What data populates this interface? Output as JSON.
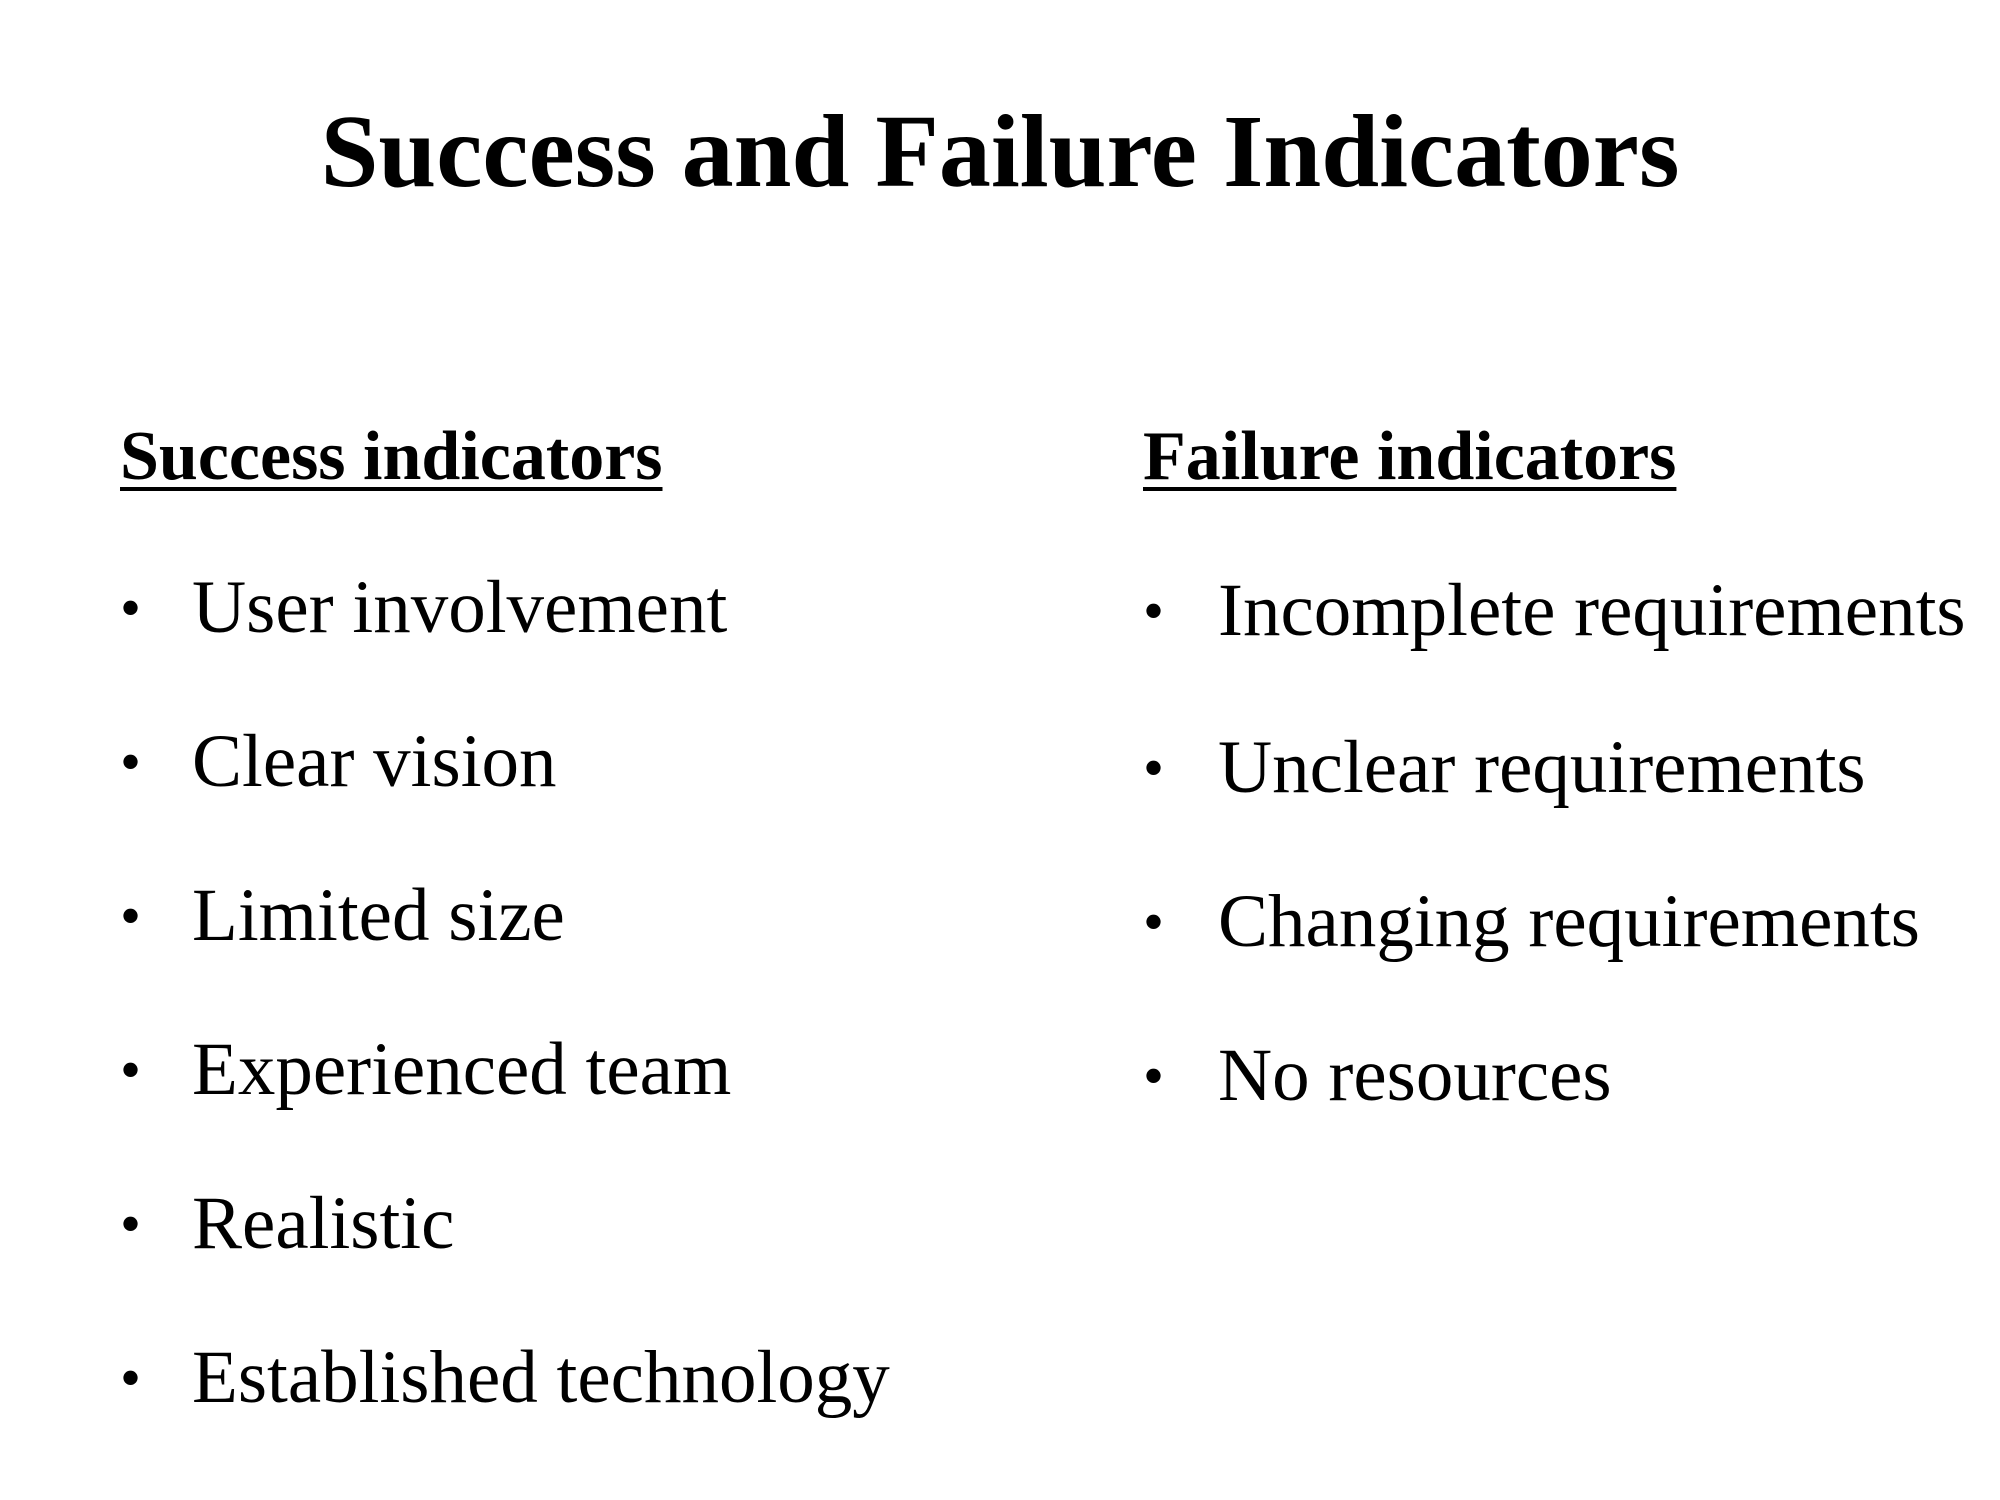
{
  "title": "Success and Failure Indicators",
  "success": {
    "heading": "Success indicators",
    "items": [
      "User involvement",
      "Clear vision",
      "Limited size",
      "Experienced team",
      "Realistic",
      "Established technology"
    ]
  },
  "failure": {
    "heading": "Failure indicators",
    "items": [
      "Incomplete requirements",
      "Unclear requirements",
      "Changing requirements",
      "No resources"
    ]
  },
  "bullet_glyph": "•"
}
